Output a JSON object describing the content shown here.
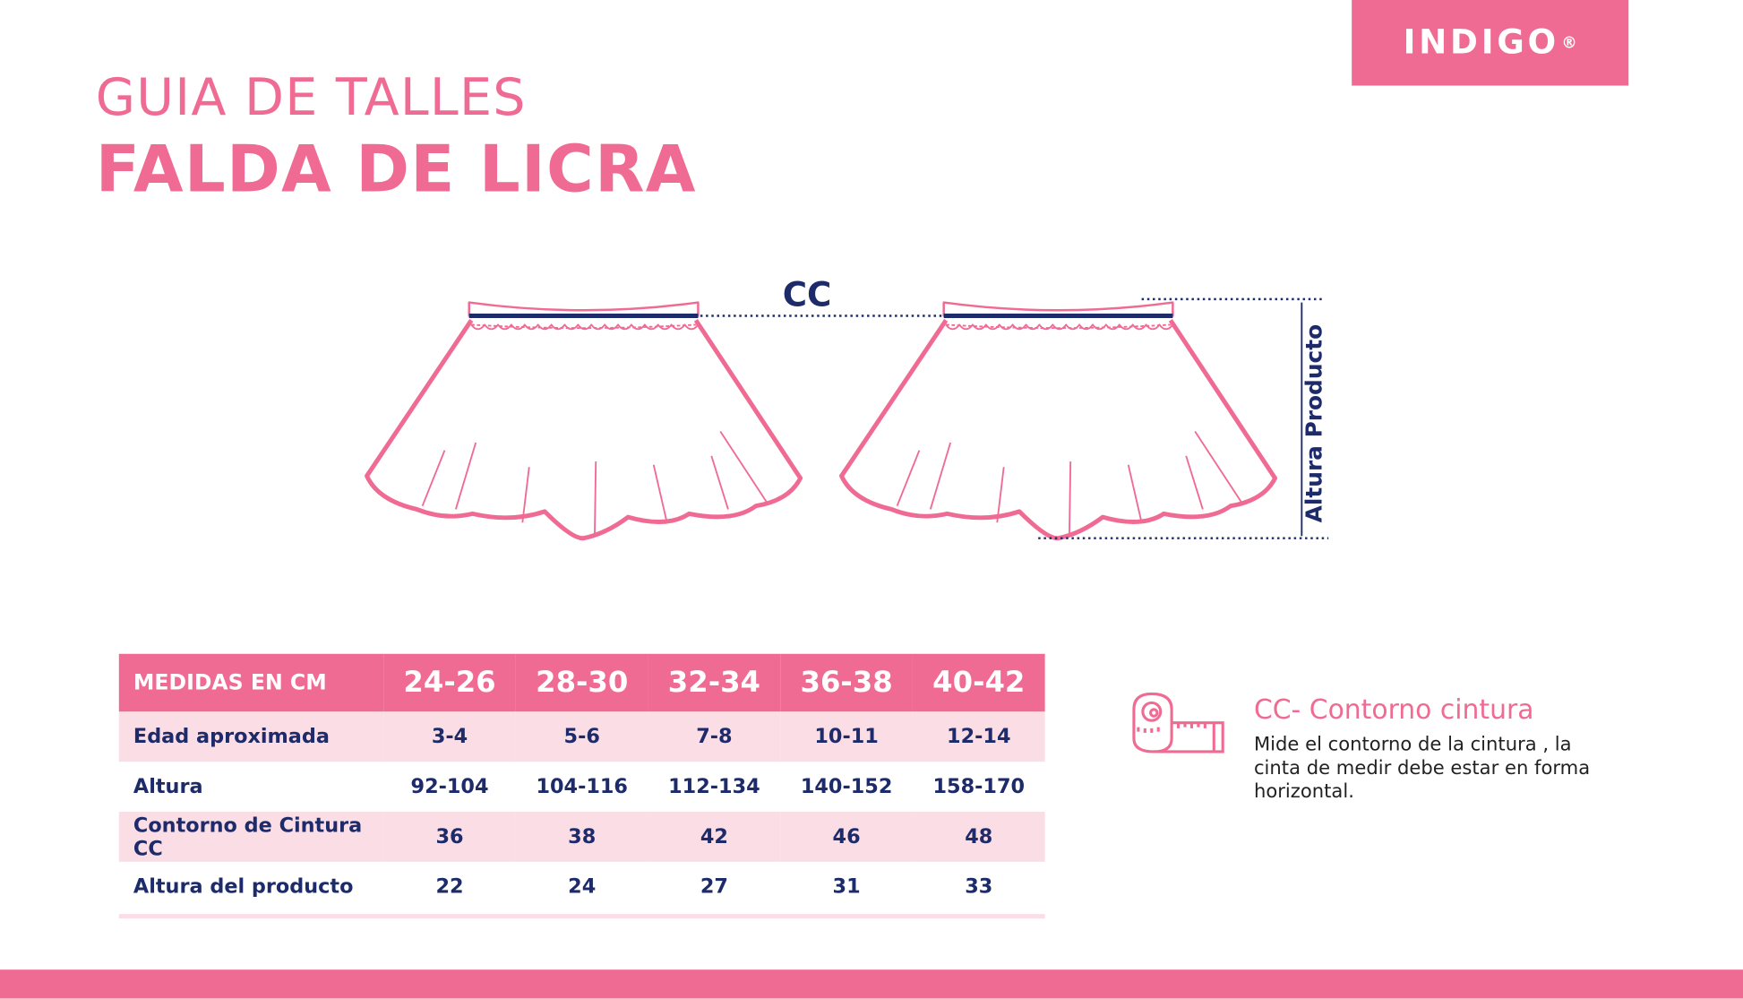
{
  "brand": {
    "logo": "INDIGO",
    "registered": "®"
  },
  "title": {
    "line1": "GUIA DE TALLES",
    "line2": "FALDA DE LICRA"
  },
  "diagram": {
    "cc_label": "CC",
    "height_label": "Altura Producto"
  },
  "colors": {
    "accent": "#f06b93",
    "navy": "#1d2b6b",
    "row_alt": "#fbdde5"
  },
  "table": {
    "header": [
      "MEDIDAS EN CM",
      "24-26",
      "28-30",
      "32-34",
      "36-38",
      "40-42"
    ],
    "rows": [
      [
        "Edad aproximada",
        "3-4",
        "5-6",
        "7-8",
        "10-11",
        "12-14"
      ],
      [
        "Altura",
        "92-104",
        "104-116",
        "112-134",
        "140-152",
        "158-170"
      ],
      [
        "Contorno de Cintura CC",
        "36",
        "38",
        "42",
        "46",
        "48"
      ],
      [
        "Altura del producto",
        "22",
        "24",
        "27",
        "31",
        "33"
      ]
    ]
  },
  "note": {
    "icon": "measuring-tape-icon",
    "title": "CC- Contorno cintura",
    "text": "Mide el contorno de la cintura , la cinta de medir debe estar en forma horizontal."
  }
}
